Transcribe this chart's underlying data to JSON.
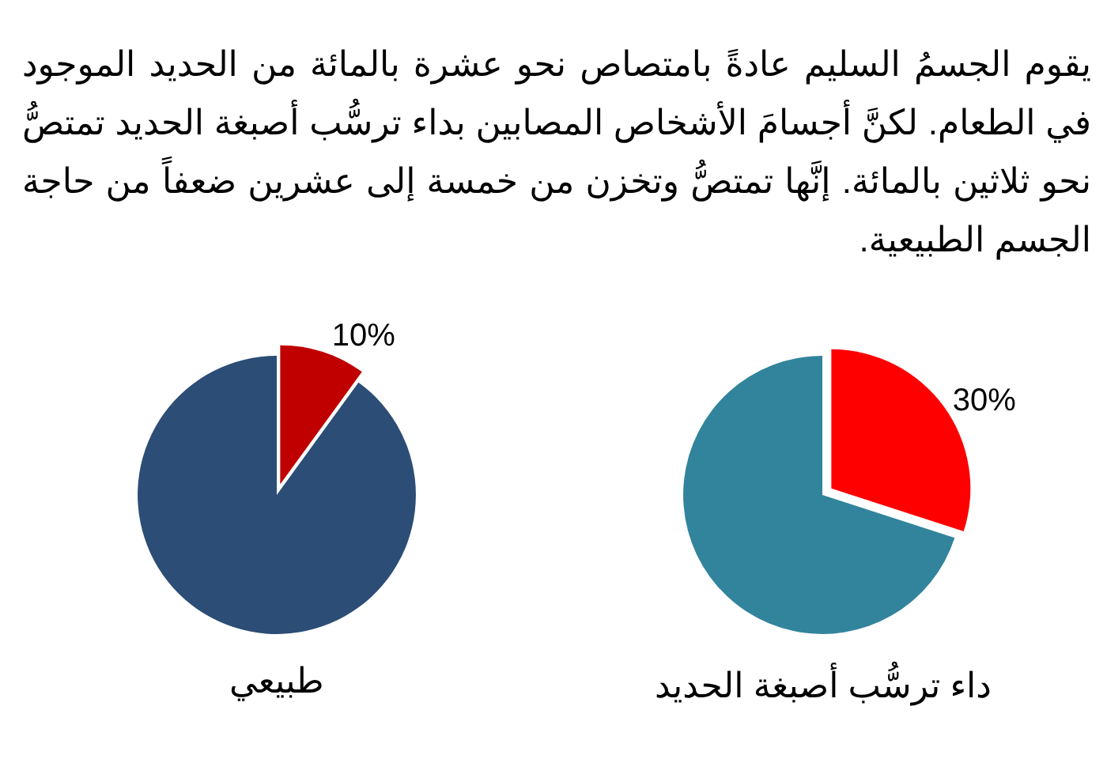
{
  "chart_data": [
    {
      "type": "other",
      "title": "يقوم الجسمُ السليم عادةً بامتصاص نحو عشرة بالمائة من الحديد الموجود في الطعام. لكنَّ أجسامَ الأشخاص المصابين بداء ترسُّب أصبغة الحديد تمتصُّ نحو ثلاثين بالمائة. إنَّها تمتصُّ وتخزن من خمسة إلى عشرين ضعفاً من حاجة الجسم الطبيعية."
    },
    {
      "type": "pie",
      "xlabel": "طبيعي",
      "categories": [
        null,
        null
      ],
      "values": [
        10,
        90
      ],
      "colors": [
        "#c00000",
        "#2c4d75"
      ],
      "value_labels": [
        "10%",
        null
      ]
    },
    {
      "type": "pie",
      "xlabel": "داء ترسُّب أصبغة الحديد",
      "categories": [
        null,
        null
      ],
      "values": [
        30,
        70
      ],
      "colors": [
        "#ff0000",
        "#31849b"
      ],
      "value_labels": [
        "30%",
        null
      ]
    }
  ]
}
